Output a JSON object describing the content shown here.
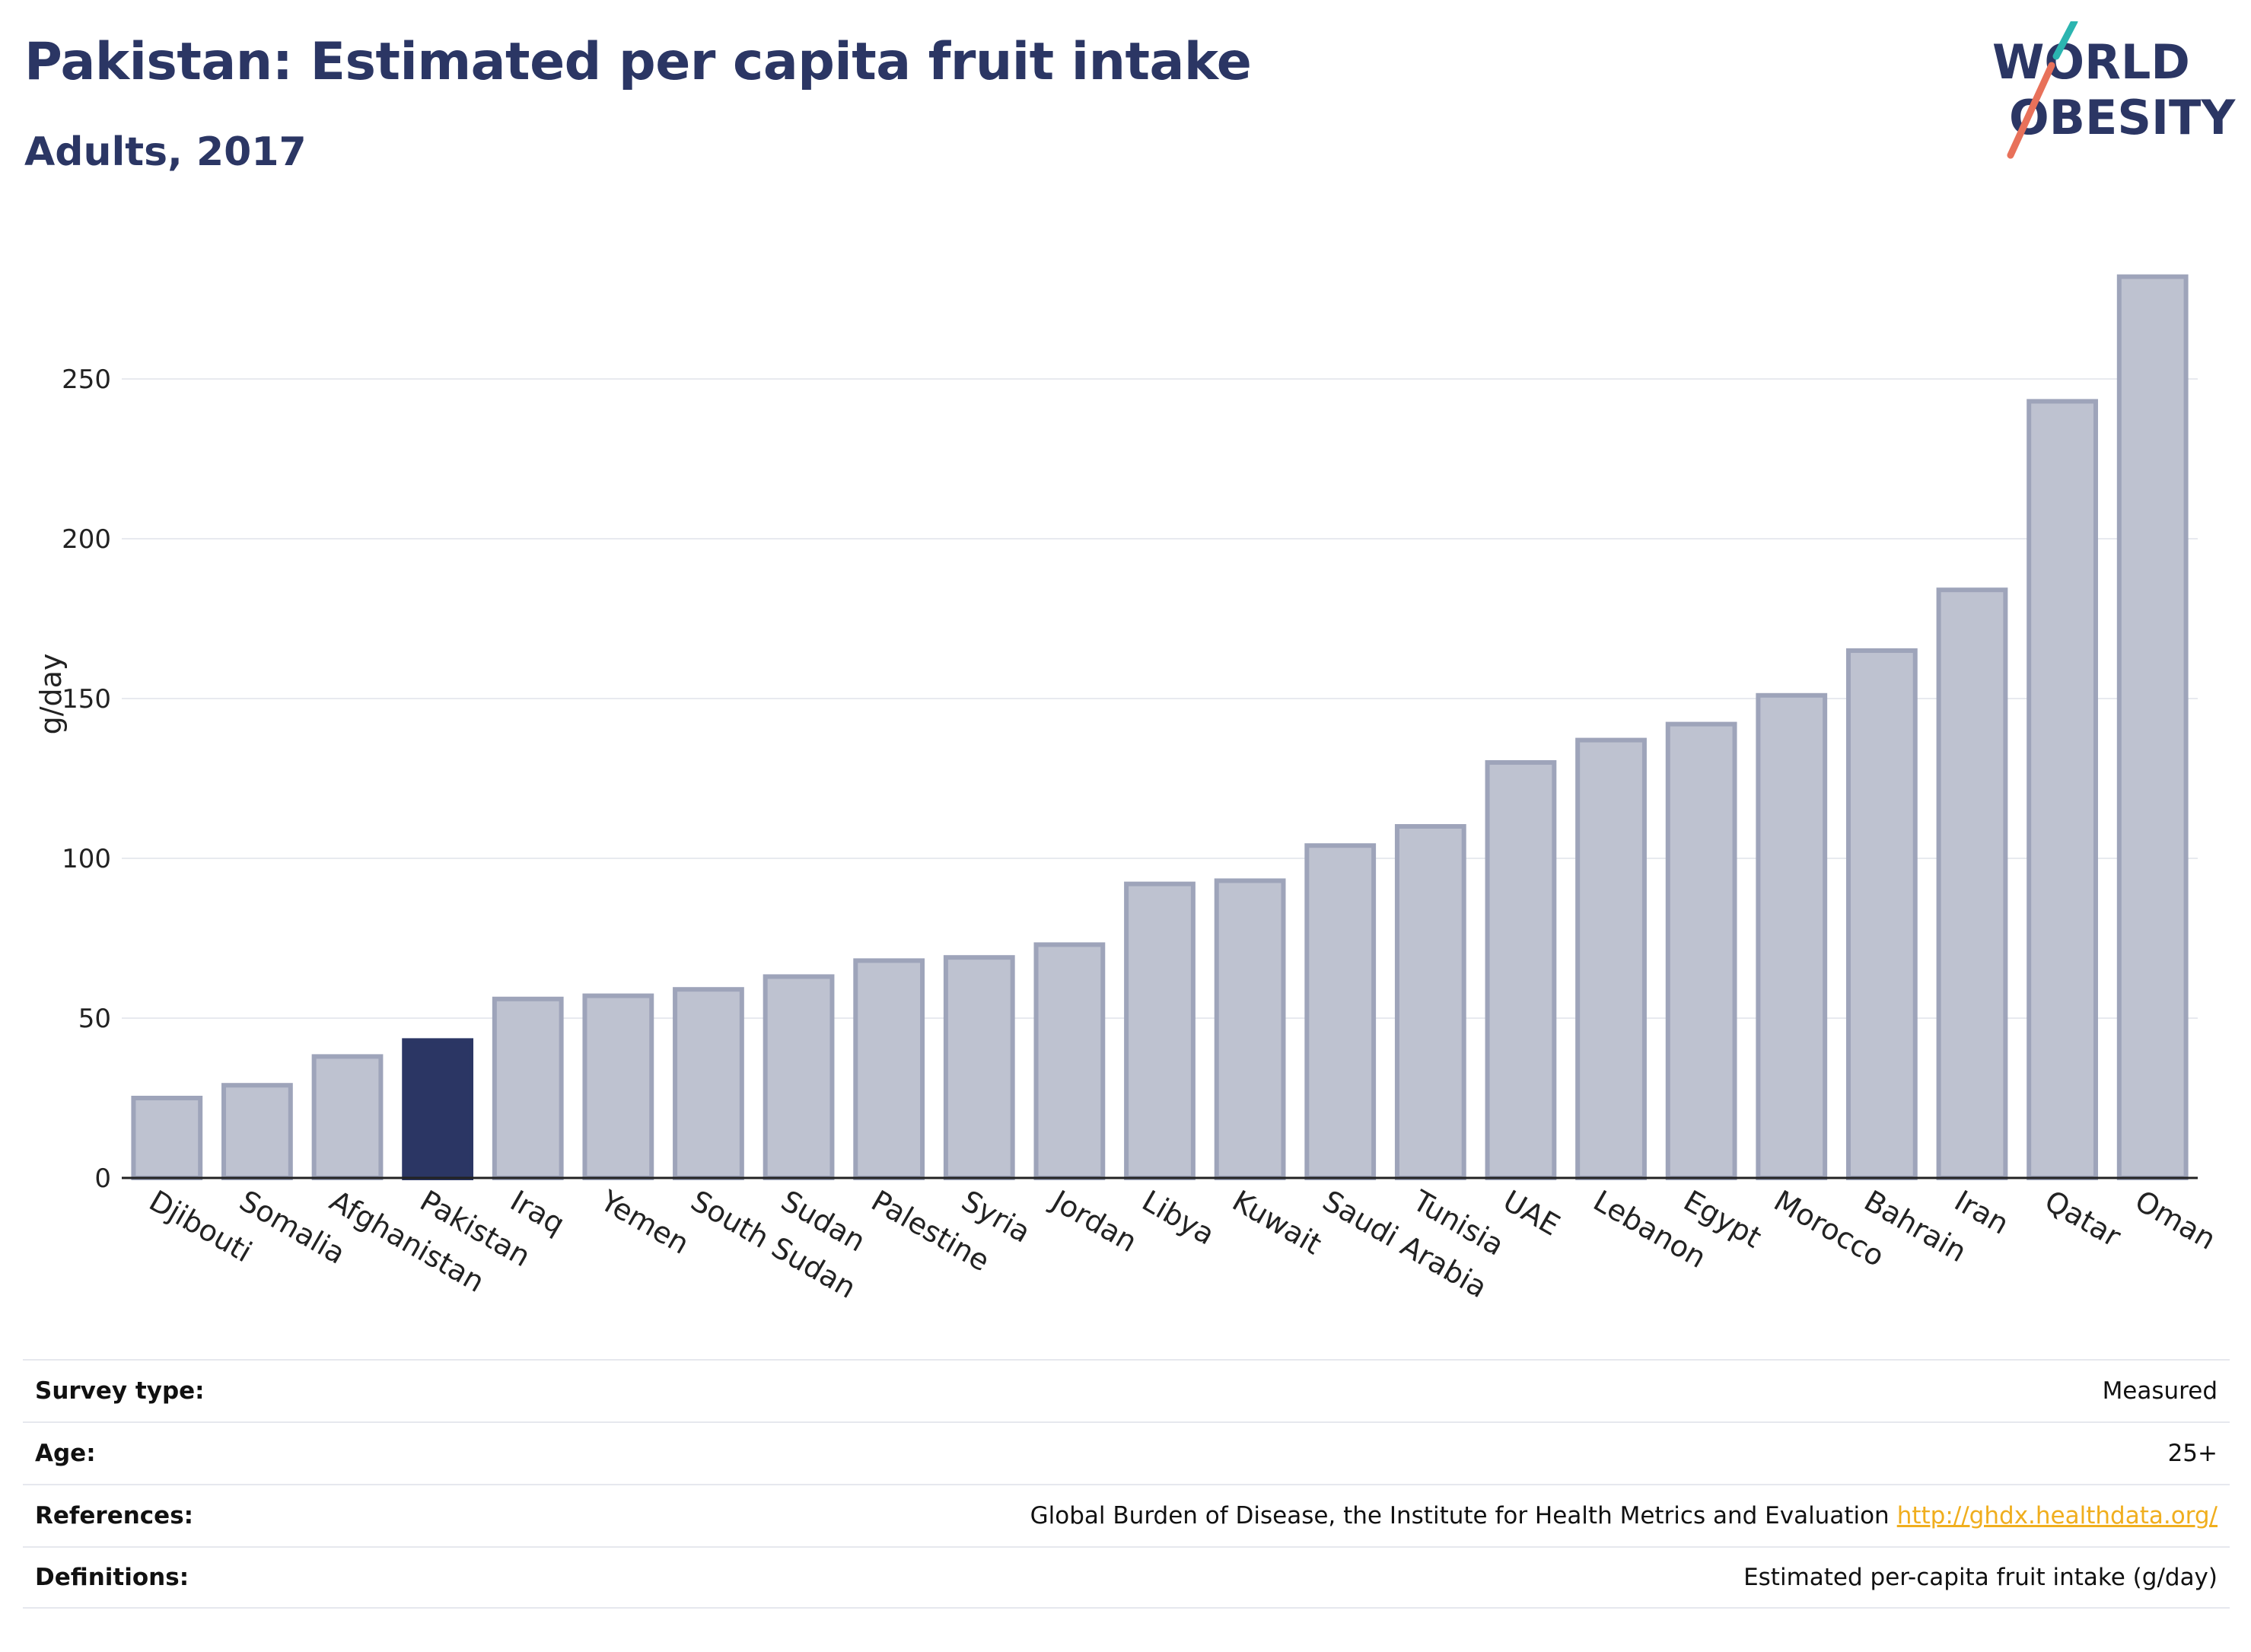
{
  "header": {
    "title": "Pakistan: Estimated per capita fruit intake",
    "subtitle": "Adults, 2017"
  },
  "logo": {
    "line1": "WORLD",
    "line2": "OBESITY",
    "colors": {
      "text": "#2b3664",
      "slash_top": "#2bb5b0",
      "slash_bottom": "#e8715a"
    }
  },
  "chart_data": {
    "type": "bar",
    "title": "Pakistan: Estimated per capita fruit intake",
    "subtitle": "Adults, 2017",
    "xlabel": "",
    "ylabel": "g/day",
    "ylim": [
      0,
      290
    ],
    "yticks": [
      0,
      50,
      100,
      150,
      200,
      250
    ],
    "grid": true,
    "highlight": "Pakistan",
    "colors": {
      "bar": "#bec2d0",
      "bar_edge": "#9ea4ba",
      "highlight": "#2b3664",
      "grid": "#e8eaef"
    },
    "categories": [
      "Djibouti",
      "Somalia",
      "Afghanistan",
      "Pakistan",
      "Iraq",
      "Yemen",
      "South Sudan",
      "Sudan",
      "Palestine",
      "Syria",
      "Jordan",
      "Libya",
      "Kuwait",
      "Saudi Arabia",
      "Tunisia",
      "UAE",
      "Lebanon",
      "Egypt",
      "Morocco",
      "Bahrain",
      "Iran",
      "Qatar",
      "Oman"
    ],
    "values": [
      25,
      29,
      38,
      43,
      56,
      57,
      59,
      63,
      68,
      69,
      73,
      92,
      93,
      104,
      110,
      130,
      137,
      142,
      151,
      165,
      184,
      243,
      282
    ]
  },
  "metadata": [
    {
      "key": "Survey type:",
      "value": "Measured"
    },
    {
      "key": "Age:",
      "value": "25+"
    },
    {
      "key": "References:",
      "value": "Global Burden of Disease, the Institute for Health Metrics and Evaluation",
      "link": "http://ghdx.healthdata.org/"
    },
    {
      "key": "Definitions:",
      "value": "Estimated per-capita fruit intake (g/day)"
    }
  ]
}
